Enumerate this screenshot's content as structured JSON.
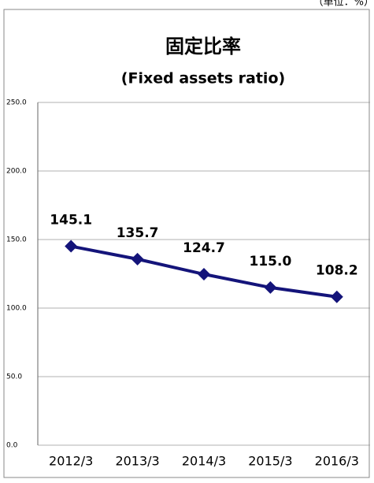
{
  "chart_data": {
    "type": "line",
    "title": "固定比率",
    "subtitle": "(Fixed assets ratio)",
    "unit_note": "（単位：%）",
    "categories": [
      "2012/3",
      "2013/3",
      "2014/3",
      "2015/3",
      "2016/3"
    ],
    "series": [
      {
        "name": "固定比率",
        "color": "#14147a",
        "values": [
          145.1,
          135.7,
          124.7,
          115.0,
          108.2
        ],
        "value_labels": [
          "145.1",
          "135.7",
          "124.7",
          "115.0",
          "108.2"
        ]
      }
    ],
    "ylim": [
      0,
      250
    ],
    "yticks": [
      {
        "value": 0,
        "label": "0.0"
      },
      {
        "value": 50,
        "label": "50.0"
      },
      {
        "value": 100,
        "label": "100.0"
      },
      {
        "value": 150,
        "label": "150.0"
      },
      {
        "value": 200,
        "label": "200.0"
      },
      {
        "value": 250,
        "label": "250.0"
      }
    ],
    "grid": true
  }
}
